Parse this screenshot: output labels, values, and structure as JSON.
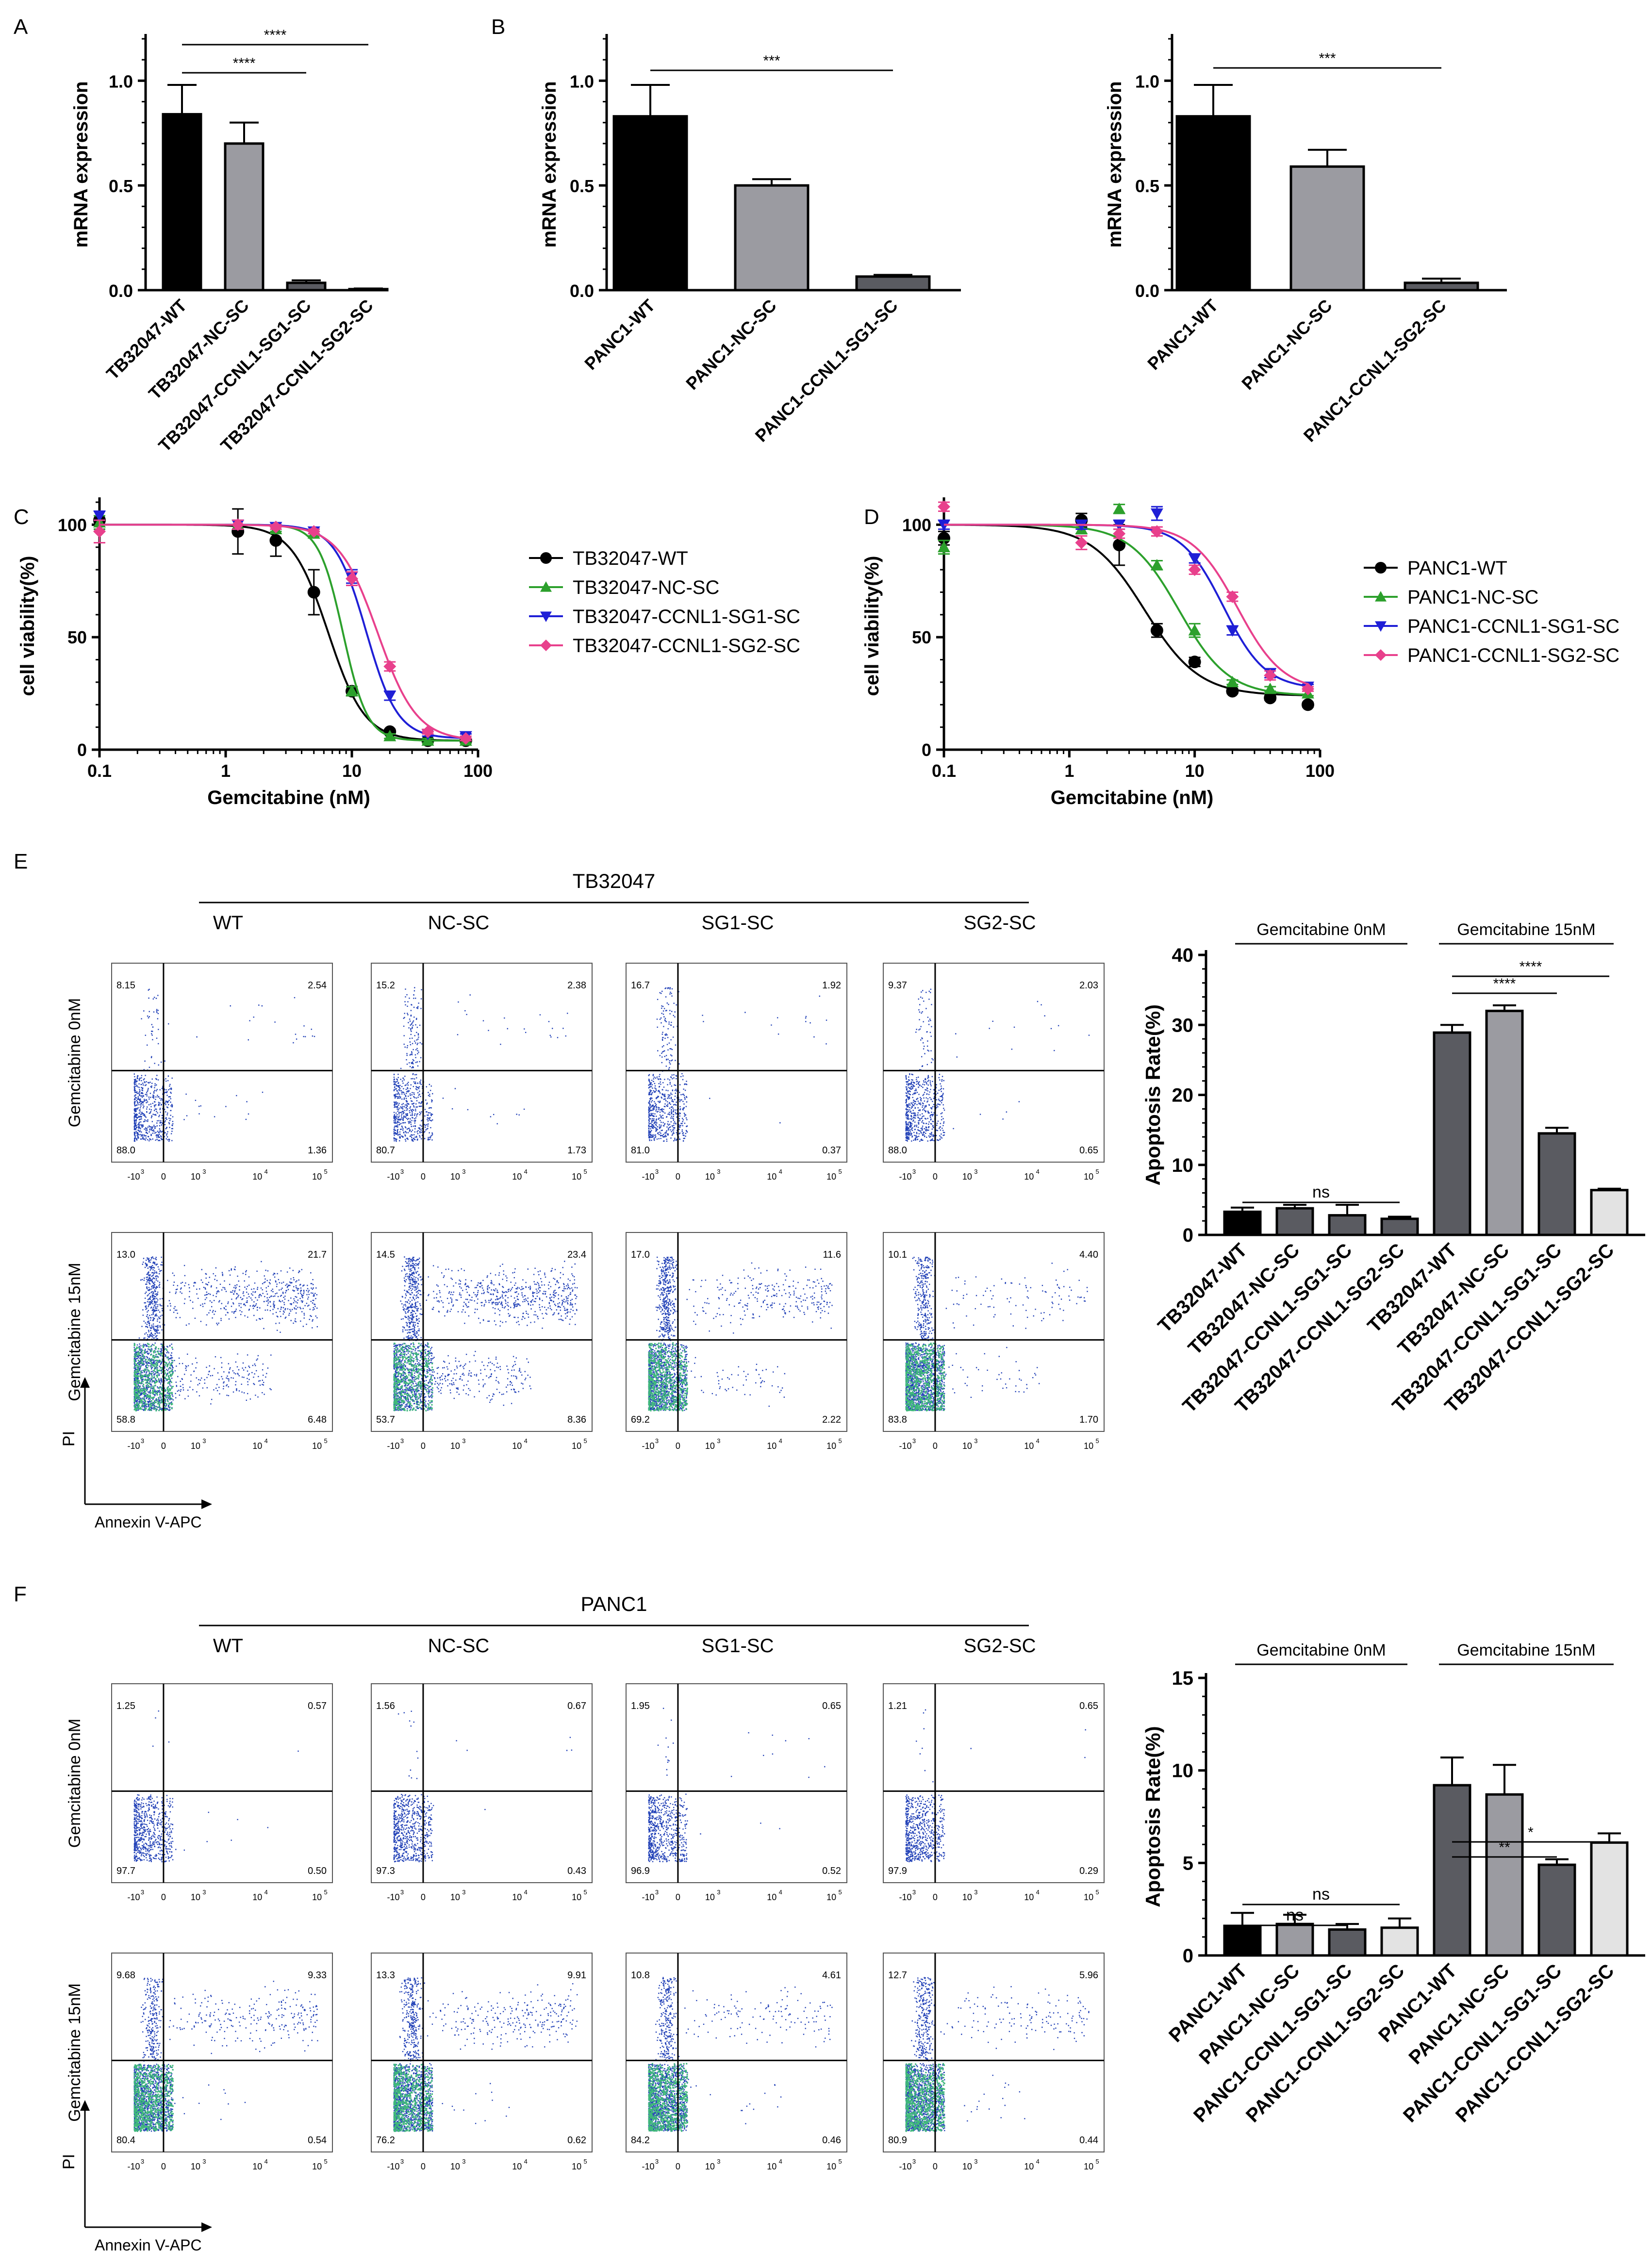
{
  "panel_labels": [
    "A",
    "B",
    "C",
    "D",
    "E",
    "F"
  ],
  "chart_data": [
    {
      "id": "A",
      "type": "bar",
      "ylabel": "mRNA expression",
      "ylim": [
        0,
        1.2
      ],
      "yticks": [
        "0.0",
        "0.5",
        "1.0"
      ],
      "categories": [
        "TB32047-WT",
        "TB32047-NC-SC",
        "TB32047-CCNL1-SG1-SC",
        "TB32047-CCNL1-SG2-SC"
      ],
      "values": [
        0.84,
        0.7,
        0.035,
        0.005
      ],
      "errors": [
        0.14,
        0.1,
        0.012,
        0.003
      ],
      "colors": [
        "#000000",
        "#9b9ba1",
        "#5a5b61",
        "#e3e3e3"
      ],
      "significance": [
        {
          "from": 0,
          "to": 2,
          "label": "****"
        },
        {
          "from": 0,
          "to": 3,
          "label": "****"
        }
      ]
    },
    {
      "id": "B1",
      "type": "bar",
      "ylabel": "mRNA expression",
      "ylim": [
        0,
        1.2
      ],
      "yticks": [
        "0.0",
        "0.5",
        "1.0"
      ],
      "categories": [
        "PANC1-WT",
        "PANC1-NC-SC",
        "PANC1-CCNL1-SG1-SC"
      ],
      "values": [
        0.83,
        0.5,
        0.065
      ],
      "errors": [
        0.15,
        0.03,
        0.008
      ],
      "colors": [
        "#000000",
        "#9b9ba1",
        "#5a5b61"
      ],
      "significance": [
        {
          "from": 0,
          "to": 2,
          "label": "***"
        }
      ]
    },
    {
      "id": "B2",
      "type": "bar",
      "ylabel": "mRNA expression",
      "ylim": [
        0,
        1.2
      ],
      "yticks": [
        "0.0",
        "0.5",
        "1.0"
      ],
      "categories": [
        "PANC1-WT",
        "PANC1-NC-SC",
        "PANC1-CCNL1-SG2-SC"
      ],
      "values": [
        0.83,
        0.59,
        0.035
      ],
      "errors": [
        0.15,
        0.08,
        0.02
      ],
      "colors": [
        "#000000",
        "#9b9ba1",
        "#5a5b61"
      ],
      "significance": [
        {
          "from": 0,
          "to": 2,
          "label": "***"
        }
      ]
    },
    {
      "id": "C",
      "type": "line",
      "xlabel": "Gemcitabine (nM)",
      "ylabel": "cell viability(%)",
      "xscale": "log",
      "xlim": [
        0.1,
        100
      ],
      "ylim": [
        0,
        110
      ],
      "xticks": [
        "0.1",
        "1",
        "10",
        "100"
      ],
      "yticks": [
        "0",
        "50",
        "100"
      ],
      "legend_position": "right",
      "series": [
        {
          "name": "TB32047-WT",
          "color": "#000000",
          "marker": "circle",
          "x": [
            0.1,
            1.25,
            2.5,
            5,
            10,
            20,
            40,
            80
          ],
          "y": [
            102,
            97,
            93,
            70,
            26,
            8,
            4,
            4
          ],
          "err": [
            4,
            10,
            7,
            10,
            2,
            1,
            1,
            1
          ],
          "fit": {
            "top": 100,
            "bottom": 4,
            "ec50": 6.5,
            "hill": 3.0
          }
        },
        {
          "name": "TB32047-NC-SC",
          "color": "#2ca02c",
          "marker": "triangle-up",
          "x": [
            0.1,
            1.25,
            2.5,
            5,
            10,
            20,
            40,
            80
          ],
          "y": [
            101,
            100,
            98,
            96,
            26,
            6,
            4,
            4
          ],
          "err": [
            3,
            2,
            1,
            1,
            2,
            1,
            1,
            1
          ],
          "fit": {
            "top": 100,
            "bottom": 4,
            "ec50": 8.5,
            "hill": 4.5
          }
        },
        {
          "name": "TB32047-CCNL1-SG1-SC",
          "color": "#1f1fd6",
          "marker": "triangle-down",
          "x": [
            0.1,
            1.25,
            2.5,
            5,
            10,
            20,
            40,
            80
          ],
          "y": [
            104,
            100,
            99,
            97,
            77,
            24,
            7,
            6
          ],
          "err": [
            2,
            2,
            1,
            1,
            3,
            2,
            1,
            1
          ],
          "fit": {
            "top": 100,
            "bottom": 5,
            "ec50": 13,
            "hill": 3.5
          }
        },
        {
          "name": "TB32047-CCNL1-SG2-SC",
          "color": "#e8408c",
          "marker": "diamond",
          "x": [
            0.1,
            1.25,
            2.5,
            5,
            10,
            20,
            40,
            80
          ],
          "y": [
            97,
            100,
            99,
            97,
            76,
            37,
            8,
            5
          ],
          "err": [
            5,
            2,
            1,
            1,
            3,
            2,
            1,
            1
          ],
          "fit": {
            "top": 100,
            "bottom": 4,
            "ec50": 16,
            "hill": 2.8
          }
        }
      ]
    },
    {
      "id": "D",
      "type": "line",
      "xlabel": "Gemcitabine (nM)",
      "ylabel": "cell viability(%)",
      "xscale": "log",
      "xlim": [
        0.1,
        100
      ],
      "ylim": [
        0,
        110
      ],
      "xticks": [
        "0.1",
        "1",
        "10",
        "100"
      ],
      "yticks": [
        "0",
        "50",
        "100"
      ],
      "legend_position": "right",
      "series": [
        {
          "name": "PANC1-WT",
          "color": "#000000",
          "marker": "circle",
          "x": [
            0.1,
            1.25,
            2.5,
            5,
            10,
            20,
            40,
            80
          ],
          "y": [
            94,
            102,
            91,
            53,
            39,
            26,
            23,
            20
          ],
          "err": [
            3,
            3,
            9,
            3,
            2,
            1,
            1,
            1
          ],
          "fit": {
            "top": 100,
            "bottom": 24,
            "ec50": 4.0,
            "hill": 2.0
          }
        },
        {
          "name": "PANC1-NC-SC",
          "color": "#2ca02c",
          "marker": "triangle-up",
          "x": [
            0.1,
            1.25,
            2.5,
            5,
            10,
            20,
            40,
            80
          ],
          "y": [
            90,
            98,
            107,
            82,
            53,
            30,
            27,
            25
          ],
          "err": [
            3,
            2,
            2,
            2,
            3,
            1,
            1,
            1
          ],
          "fit": {
            "top": 100,
            "bottom": 24,
            "ec50": 7.5,
            "hill": 2.2
          }
        },
        {
          "name": "PANC1-CCNL1-SG1-SC",
          "color": "#1f1fd6",
          "marker": "triangle-down",
          "x": [
            0.1,
            1.25,
            2.5,
            5,
            10,
            20,
            40,
            80
          ],
          "y": [
            100,
            100,
            100,
            105,
            85,
            53,
            34,
            28
          ],
          "err": [
            2,
            2,
            2,
            3,
            2,
            2,
            2,
            1
          ],
          "fit": {
            "top": 100,
            "bottom": 27,
            "ec50": 17,
            "hill": 2.6
          }
        },
        {
          "name": "PANC1-CCNL1-SG2-SC",
          "color": "#e8408c",
          "marker": "diamond",
          "x": [
            0.1,
            1.25,
            2.5,
            5,
            10,
            20,
            40,
            80
          ],
          "y": [
            108,
            92,
            96,
            97,
            80,
            68,
            33,
            27
          ],
          "err": [
            2,
            3,
            2,
            2,
            2,
            2,
            2,
            1
          ],
          "fit": {
            "top": 100,
            "bottom": 26,
            "ec50": 22,
            "hill": 2.4
          }
        }
      ]
    },
    {
      "id": "E-bar",
      "type": "bar",
      "ylabel": "Apoptosis Rate(%)",
      "ylim": [
        0,
        40
      ],
      "yticks": [
        "0",
        "10",
        "20",
        "30",
        "40"
      ],
      "group_labels": [
        "Gemcitabine 0nM",
        "Gemcitabine 15nM"
      ],
      "categories": [
        "TB32047-WT",
        "TB32047-NC-SC",
        "TB32047-CCNL1-SG1-SC",
        "TB32047-CCNL1-SG2-SC",
        "TB32047-WT",
        "TB32047-NC-SC",
        "TB32047-CCNL1-SG1-SC",
        "TB32047-CCNL1-SG2-SC"
      ],
      "values": [
        3.3,
        3.8,
        2.8,
        2.3,
        28.9,
        32.0,
        14.5,
        6.4
      ],
      "errors": [
        0.6,
        0.5,
        1.5,
        0.3,
        1.1,
        0.8,
        0.8,
        0.2
      ],
      "colors": [
        "#000000",
        "#5a5b61",
        "#5a5b61",
        "#5a5b61",
        "#5a5b61",
        "#9b9ba1",
        "#5a5b61",
        "#e3e3e3"
      ],
      "significance": [
        {
          "from": 0,
          "to": 3,
          "label": "ns"
        },
        {
          "from": 4,
          "to": 6,
          "label": "****"
        },
        {
          "from": 4,
          "to": 7,
          "label": "****"
        }
      ]
    },
    {
      "id": "F-bar",
      "type": "bar",
      "ylabel": "Apoptosis Rate(%)",
      "ylim": [
        0,
        15
      ],
      "yticks": [
        "0",
        "5",
        "10",
        "15"
      ],
      "group_labels": [
        "Gemcitabine 0nM",
        "Gemcitabine 15nM"
      ],
      "categories": [
        "PANC1-WT",
        "PANC1-NC-SC",
        "PANC1-CCNL1-SG1-SC",
        "PANC1-CCNL1-SG2-SC",
        "PANC1-WT",
        "PANC1-NC-SC",
        "PANC1-CCNL1-SG1-SC",
        "PANC1-CCNL1-SG2-SC"
      ],
      "values": [
        1.6,
        1.7,
        1.4,
        1.5,
        9.2,
        8.7,
        4.9,
        6.1
      ],
      "errors": [
        0.7,
        0.5,
        0.3,
        0.5,
        1.5,
        1.6,
        0.3,
        0.5
      ],
      "colors": [
        "#000000",
        "#9b9ba1",
        "#5a5b61",
        "#e3e3e3",
        "#5a5b61",
        "#9b9ba1",
        "#5a5b61",
        "#e3e3e3"
      ],
      "significance": [
        {
          "from": 0,
          "to": 2,
          "label": "ns"
        },
        {
          "from": 0,
          "to": 3,
          "label": "ns"
        },
        {
          "from": 4,
          "to": 6,
          "label": "**"
        },
        {
          "from": 4,
          "to": 7,
          "label": "*"
        }
      ]
    },
    {
      "id": "E-flow",
      "type": "scatter",
      "title": "TB32047",
      "columns": [
        "WT",
        "NC-SC",
        "SG1-SC",
        "SG2-SC"
      ],
      "rows": [
        "Gemcitabine 0nM",
        "Gemcitabine 15nM"
      ],
      "xlabel": "Annexin V-APC",
      "ylabel": "PI",
      "axis_ticks": {
        "x": [
          "-10",
          "0",
          "10",
          "10",
          "10"
        ],
        "x_exp": [
          "3",
          "",
          "3",
          "4",
          "5"
        ]
      },
      "quadrants": [
        [
          {
            "Q1": "8.15",
            "Q2": "2.54",
            "Q3": "1.36",
            "Q4": "88.0"
          },
          {
            "Q1": "15.2",
            "Q2": "2.38",
            "Q3": "1.73",
            "Q4": "80.7"
          },
          {
            "Q1": "16.7",
            "Q2": "1.92",
            "Q3": "0.37",
            "Q4": "81.0"
          },
          {
            "Q1": "9.37",
            "Q2": "2.03",
            "Q3": "0.65",
            "Q4": "88.0"
          }
        ],
        [
          {
            "Q1": "13.0",
            "Q2": "21.7",
            "Q3": "6.48",
            "Q4": "58.8"
          },
          {
            "Q1": "14.5",
            "Q2": "23.4",
            "Q3": "8.36",
            "Q4": "53.7"
          },
          {
            "Q1": "17.0",
            "Q2": "11.6",
            "Q3": "2.22",
            "Q4": "69.2"
          },
          {
            "Q1": "10.1",
            "Q2": "4.40",
            "Q3": "1.70",
            "Q4": "83.8"
          }
        ]
      ]
    },
    {
      "id": "F-flow",
      "type": "scatter",
      "title": "PANC1",
      "columns": [
        "WT",
        "NC-SC",
        "SG1-SC",
        "SG2-SC"
      ],
      "rows": [
        "Gemcitabine 0nM",
        "Gemcitabine 15nM"
      ],
      "xlabel": "Annexin V-APC",
      "ylabel": "PI",
      "axis_ticks": {
        "x": [
          "-10",
          "0",
          "10",
          "10",
          "10"
        ],
        "x_exp": [
          "3",
          "",
          "3",
          "4",
          "5"
        ]
      },
      "quadrants": [
        [
          {
            "Q1": "1.25",
            "Q2": "0.57",
            "Q3": "0.50",
            "Q4": "97.7"
          },
          {
            "Q1": "1.56",
            "Q2": "0.67",
            "Q3": "0.43",
            "Q4": "97.3"
          },
          {
            "Q1": "1.95",
            "Q2": "0.65",
            "Q3": "0.52",
            "Q4": "96.9"
          },
          {
            "Q1": "1.21",
            "Q2": "0.65",
            "Q3": "0.29",
            "Q4": "97.9"
          }
        ],
        [
          {
            "Q1": "9.68",
            "Q2": "9.33",
            "Q3": "0.54",
            "Q4": "80.4"
          },
          {
            "Q1": "13.3",
            "Q2": "9.91",
            "Q3": "0.62",
            "Q4": "76.2"
          },
          {
            "Q1": "10.8",
            "Q2": "4.61",
            "Q3": "0.46",
            "Q4": "84.2"
          },
          {
            "Q1": "12.7",
            "Q2": "5.96",
            "Q3": "0.44",
            "Q4": "80.9"
          }
        ]
      ]
    }
  ]
}
